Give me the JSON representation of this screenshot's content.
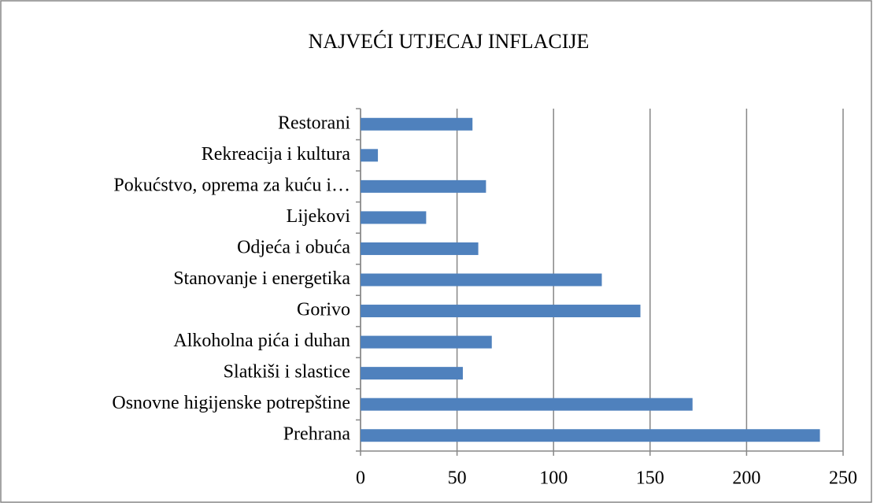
{
  "chart_data": {
    "type": "barh",
    "title": "NAJVEĆI UTJECAJ INFLACIJE",
    "categories": [
      "Prehrana",
      "Osnovne higijenske potrepštine",
      "Slatkiši i slastice",
      "Alkoholna pića i duhan",
      "Gorivo",
      "Stanovanje i energetika",
      "Odjeća i obuća",
      "Lijekovi",
      "Pokućstvo, oprema za kuću i…",
      "Rekreacija i kultura",
      "Restorani"
    ],
    "values": [
      238,
      172,
      53,
      68,
      145,
      125,
      61,
      34,
      65,
      9,
      58
    ],
    "color": "#4f81bd",
    "xlim": [
      0,
      250
    ],
    "xticks": [
      0,
      50,
      100,
      150,
      200,
      250
    ],
    "grid": true
  }
}
